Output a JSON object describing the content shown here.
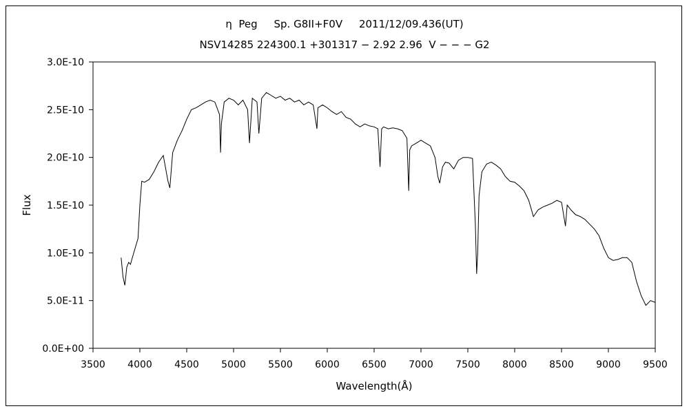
{
  "chart_data": {
    "type": "line",
    "title_line1": "η  Peg     Sp. G8II+F0V     2011/12/09.436(UT)",
    "title_line2": "NSV14285 224300.1 +301317 − 2.92 2.96  V − − − G2",
    "xlabel": "Wavelength(Å)",
    "ylabel": "Flux",
    "xlim": [
      3500,
      9500
    ],
    "ylim": [
      0,
      3e-10
    ],
    "x_ticks": [
      3500,
      4000,
      4500,
      5000,
      5500,
      6000,
      6500,
      7000,
      7500,
      8000,
      8500,
      9000,
      9500
    ],
    "x_tick_labels": [
      "3500",
      "4000",
      "4500",
      "5000",
      "5500",
      "6000",
      "6500",
      "7000",
      "7500",
      "8000",
      "8500",
      "9000",
      "9500"
    ],
    "y_ticks": [
      0,
      5e-11,
      1e-10,
      1.5e-10,
      2e-10,
      2.5e-10,
      3e-10
    ],
    "y_tick_labels": [
      "0.0E+00",
      "5.0E-11",
      "1.0E-10",
      "1.5E-10",
      "2.0E-10",
      "2.5E-10",
      "3.0E-10"
    ],
    "grid": false,
    "legend": "none",
    "line_color": "#000000",
    "series": [
      {
        "x": [
          3800,
          3820,
          3840,
          3860,
          3880,
          3900,
          3920,
          3950,
          3980,
          4000,
          4020,
          4050,
          4100,
          4150,
          4200,
          4250,
          4300,
          4320,
          4350,
          4400,
          4450,
          4500,
          4550,
          4600,
          4650,
          4700,
          4750,
          4800,
          4850,
          4861,
          4870,
          4900,
          4950,
          5000,
          5050,
          5100,
          5150,
          5170,
          5200,
          5250,
          5270,
          5300,
          5350,
          5400,
          5450,
          5500,
          5550,
          5600,
          5650,
          5700,
          5750,
          5800,
          5850,
          5890,
          5900,
          5950,
          6000,
          6050,
          6100,
          6150,
          6200,
          6250,
          6300,
          6350,
          6400,
          6450,
          6500,
          6540,
          6563,
          6580,
          6600,
          6650,
          6700,
          6750,
          6800,
          6850,
          6869,
          6880,
          6900,
          6950,
          7000,
          7050,
          7100,
          7150,
          7180,
          7200,
          7230,
          7260,
          7300,
          7350,
          7400,
          7450,
          7500,
          7550,
          7580,
          7594,
          7605,
          7620,
          7650,
          7700,
          7750,
          7800,
          7850,
          7900,
          7950,
          8000,
          8050,
          8100,
          8150,
          8200,
          8250,
          8300,
          8350,
          8400,
          8450,
          8500,
          8542,
          8560,
          8600,
          8650,
          8700,
          8750,
          8800,
          8850,
          8900,
          8950,
          9000,
          9050,
          9100,
          9150,
          9200,
          9250,
          9300,
          9350,
          9400,
          9450,
          9500
        ],
        "y": [
          9.5e-11,
          7.5e-11,
          6.6e-11,
          8.5e-11,
          9e-11,
          8.8e-11,
          9.5e-11,
          1.05e-10,
          1.15e-10,
          1.5e-10,
          1.75e-10,
          1.74e-10,
          1.77e-10,
          1.85e-10,
          1.95e-10,
          2.02e-10,
          1.75e-10,
          1.68e-10,
          2.05e-10,
          2.18e-10,
          2.28e-10,
          2.4e-10,
          2.5e-10,
          2.52e-10,
          2.55e-10,
          2.58e-10,
          2.6e-10,
          2.58e-10,
          2.45e-10,
          2.05e-10,
          2.35e-10,
          2.58e-10,
          2.62e-10,
          2.6e-10,
          2.55e-10,
          2.6e-10,
          2.5e-10,
          2.15e-10,
          2.62e-10,
          2.58e-10,
          2.25e-10,
          2.62e-10,
          2.68e-10,
          2.65e-10,
          2.62e-10,
          2.64e-10,
          2.6e-10,
          2.62e-10,
          2.58e-10,
          2.6e-10,
          2.55e-10,
          2.58e-10,
          2.55e-10,
          2.3e-10,
          2.52e-10,
          2.55e-10,
          2.52e-10,
          2.48e-10,
          2.45e-10,
          2.48e-10,
          2.42e-10,
          2.4e-10,
          2.35e-10,
          2.32e-10,
          2.35e-10,
          2.33e-10,
          2.32e-10,
          2.3e-10,
          1.9e-10,
          2.3e-10,
          2.32e-10,
          2.3e-10,
          2.31e-10,
          2.3e-10,
          2.28e-10,
          2.2e-10,
          1.65e-10,
          2.08e-10,
          2.12e-10,
          2.15e-10,
          2.18e-10,
          2.15e-10,
          2.12e-10,
          2e-10,
          1.8e-10,
          1.73e-10,
          1.9e-10,
          1.95e-10,
          1.94e-10,
          1.88e-10,
          1.97e-10,
          2e-10,
          2e-10,
          1.99e-10,
          1.3e-10,
          7.8e-11,
          1e-10,
          1.6e-10,
          1.85e-10,
          1.93e-10,
          1.95e-10,
          1.92e-10,
          1.88e-10,
          1.8e-10,
          1.75e-10,
          1.74e-10,
          1.7e-10,
          1.65e-10,
          1.55e-10,
          1.38e-10,
          1.45e-10,
          1.48e-10,
          1.5e-10,
          1.52e-10,
          1.55e-10,
          1.53e-10,
          1.28e-10,
          1.5e-10,
          1.45e-10,
          1.4e-10,
          1.38e-10,
          1.35e-10,
          1.3e-10,
          1.25e-10,
          1.18e-10,
          1.05e-10,
          9.5e-11,
          9.2e-11,
          9.3e-11,
          9.5e-11,
          9.5e-11,
          9e-11,
          7e-11,
          5.5e-11,
          4.5e-11,
          5e-11,
          4.8e-11
        ]
      }
    ]
  }
}
